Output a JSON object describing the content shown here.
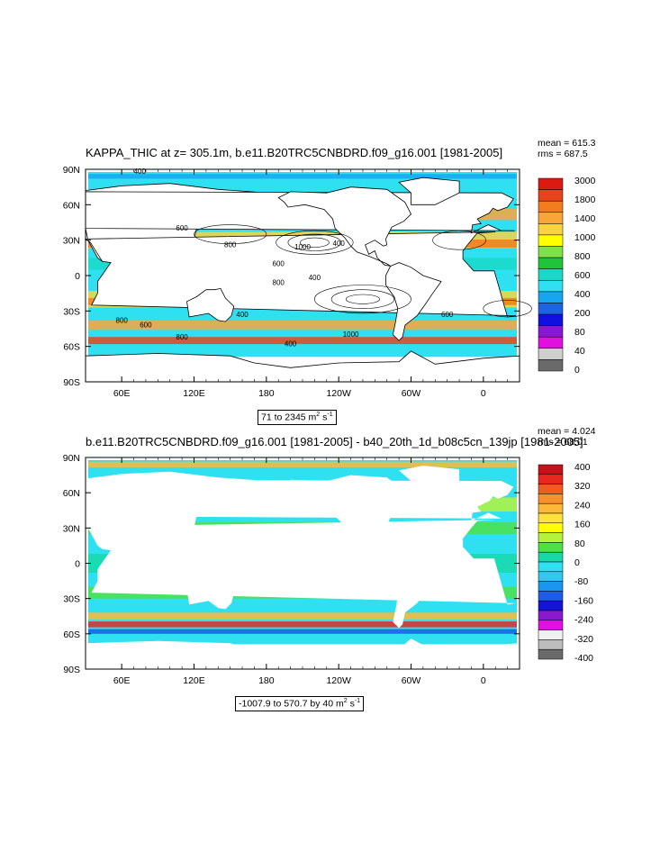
{
  "chart_data": [
    {
      "type": "heatmap",
      "title": "KAPPA_THIC at z= 305.1m, b.e11.B20TRC5CNBDRD.f09_g16.001 [1981-2005]",
      "stats": {
        "mean_label": "mean = 615.3",
        "rms_label": "rms = 687.5"
      },
      "range_label_prefix": "71 to 2345 m",
      "range_label_sup": "2",
      "range_label_suffix": " s",
      "range_label_sup2": "-1",
      "x_ticks": [
        "60E",
        "120E",
        "180",
        "120W",
        "60W",
        "0"
      ],
      "y_ticks": [
        "90N",
        "60N",
        "30N",
        "0",
        "30S",
        "60S",
        "90S"
      ],
      "colorbar": {
        "levels": [
          "3000",
          "1800",
          "1400",
          "1000",
          "800",
          "600",
          "400",
          "200",
          "80",
          "40",
          "0"
        ],
        "colors": [
          "#dd1a12",
          "#e8441b",
          "#f37c1f",
          "#f8a63a",
          "#fcd23e",
          "#ffff00",
          "#7fe04a",
          "#1fc43a",
          "#19d8c8",
          "#2ee0f0",
          "#16a6f0",
          "#1c64e6",
          "#1010e0",
          "#8a18d0",
          "#e010e0",
          "#cfcfcf",
          "#6a6a6a"
        ]
      },
      "contour_labels": [
        "400",
        "600",
        "800",
        "1000",
        "400",
        "600",
        "800",
        "400",
        "800",
        "600",
        "400",
        "600",
        "800",
        "400",
        "1000"
      ]
    },
    {
      "type": "heatmap",
      "title": "b.e11.B20TRC5CNBDRD.f09_g16.001 [1981-2005] - b40_20th_1d_b08c5cn_139jp [1981-2005]",
      "stats": {
        "mean_label": "mean = 4.024",
        "rms_label": "rms = 68.01"
      },
      "range_label_prefix": "-1007.9 to 570.7 by 40 m",
      "range_label_sup": "2",
      "range_label_suffix": " s",
      "range_label_sup2": "-1",
      "x_ticks": [
        "60E",
        "120E",
        "180",
        "120W",
        "60W",
        "0"
      ],
      "y_ticks": [
        "90N",
        "60N",
        "30N",
        "0",
        "30S",
        "60S",
        "90S"
      ],
      "colorbar": {
        "levels": [
          "400",
          "320",
          "240",
          "160",
          "80",
          "0",
          "-80",
          "-160",
          "-240",
          "-320",
          "-400"
        ],
        "colors": [
          "#c8101a",
          "#e8281e",
          "#f25a1e",
          "#f8902c",
          "#fcb83a",
          "#fde23e",
          "#ffff00",
          "#b4f23c",
          "#4ee048",
          "#19d8a8",
          "#2ee0f0",
          "#30c8f0",
          "#1a96ee",
          "#1c5ce6",
          "#1414d8",
          "#8a18d0",
          "#e010e0",
          "#f0f0f0",
          "#bdbdbd",
          "#6a6a6a"
        ]
      }
    }
  ]
}
